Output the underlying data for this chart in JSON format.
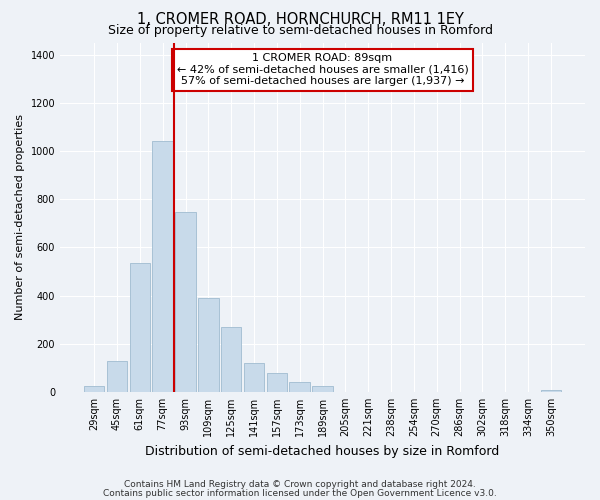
{
  "title": "1, CROMER ROAD, HORNCHURCH, RM11 1EY",
  "subtitle": "Size of property relative to semi-detached houses in Romford",
  "xlabel": "Distribution of semi-detached houses by size in Romford",
  "ylabel": "Number of semi-detached properties",
  "footnote1": "Contains HM Land Registry data © Crown copyright and database right 2024.",
  "footnote2": "Contains public sector information licensed under the Open Government Licence v3.0.",
  "bin_labels": [
    "29sqm",
    "45sqm",
    "61sqm",
    "77sqm",
    "93sqm",
    "109sqm",
    "125sqm",
    "141sqm",
    "157sqm",
    "173sqm",
    "189sqm",
    "205sqm",
    "221sqm",
    "238sqm",
    "254sqm",
    "270sqm",
    "286sqm",
    "302sqm",
    "318sqm",
    "334sqm",
    "350sqm"
  ],
  "bar_heights": [
    25,
    130,
    535,
    1040,
    745,
    390,
    270,
    120,
    80,
    40,
    25,
    0,
    0,
    0,
    0,
    0,
    0,
    0,
    0,
    0,
    10
  ],
  "bar_color": "#c8daea",
  "bar_edge_color": "#a0bcd0",
  "vline_x_idx": 4,
  "vline_color": "#cc0000",
  "annotation_text": "1 CROMER ROAD: 89sqm\n← 42% of semi-detached houses are smaller (1,416)\n57% of semi-detached houses are larger (1,937) →",
  "annotation_box_color": "#ffffff",
  "annotation_box_edge": "#cc0000",
  "ylim": [
    0,
    1450
  ],
  "yticks": [
    0,
    200,
    400,
    600,
    800,
    1000,
    1200,
    1400
  ],
  "bg_color": "#eef2f7",
  "plot_bg_color": "#eef2f7",
  "grid_color": "#ffffff",
  "title_fontsize": 10.5,
  "subtitle_fontsize": 9,
  "xlabel_fontsize": 9,
  "ylabel_fontsize": 8,
  "tick_fontsize": 7,
  "annot_fontsize": 8,
  "footnote_fontsize": 6.5
}
